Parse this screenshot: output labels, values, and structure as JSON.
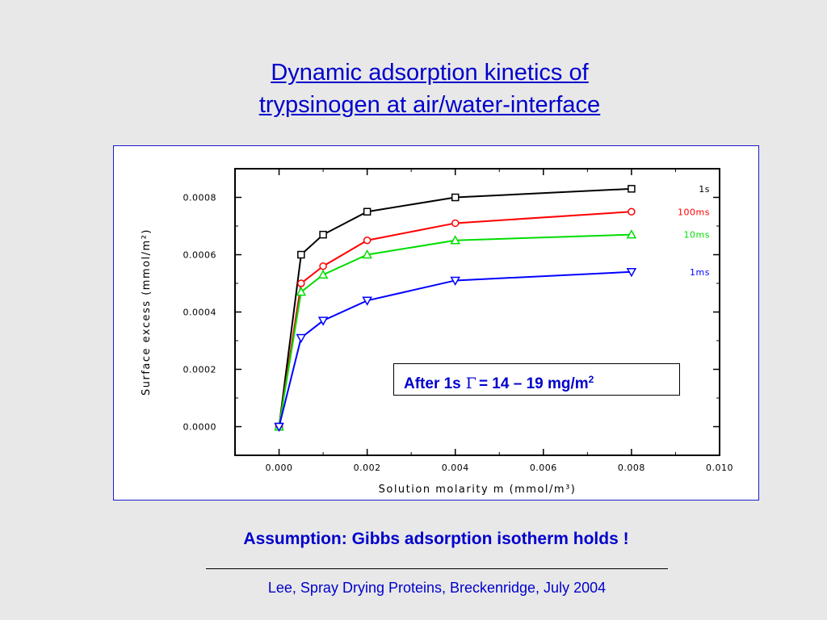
{
  "slide": {
    "title_line1": "Dynamic adsorption kinetics of",
    "title_line2": "trypsinogen at air/water-interface",
    "callout_prefix": "After 1s",
    "callout_symbol": "Γ",
    "callout_value": "= 14 – 19 mg/m",
    "callout_exp": "2",
    "assumption": "Assumption: Gibbs adsorption isotherm holds !",
    "footer": "Lee, Spray Drying Proteins, Breckenridge, July 2004"
  },
  "chart_data": {
    "type": "line",
    "xlabel": "Solution molarity m (mmol/m³)",
    "ylabel": "Surface excess (mmol/m²)",
    "xlim": [
      -0.001,
      0.01
    ],
    "ylim": [
      -0.0001,
      0.0009
    ],
    "xticks": [
      0.0,
      0.002,
      0.004,
      0.006,
      0.008,
      0.01
    ],
    "xtick_labels": [
      "0.000",
      "0.002",
      "0.004",
      "0.006",
      "0.008",
      "0.010"
    ],
    "yticks": [
      0.0,
      0.0002,
      0.0004,
      0.0006,
      0.0008
    ],
    "ytick_labels": [
      "0.0000",
      "0.0002",
      "0.0004",
      "0.0006",
      "0.0008"
    ],
    "grid": false,
    "x": [
      0.0,
      0.0005,
      0.001,
      0.002,
      0.004,
      0.008
    ],
    "series": [
      {
        "name": "1s",
        "color": "#000000",
        "marker": "square",
        "label_color": "#000000",
        "values": [
          0.0,
          0.0006,
          0.00067,
          0.00075,
          0.0008,
          0.00083
        ]
      },
      {
        "name": "100ms",
        "color": "#ff0000",
        "marker": "circle",
        "label_color": "#ff0000",
        "values": [
          0.0,
          0.0005,
          0.00056,
          0.00065,
          0.00071,
          0.00075
        ]
      },
      {
        "name": "10ms",
        "color": "#00dd00",
        "marker": "triangle-up",
        "label_color": "#00dd00",
        "values": [
          0.0,
          0.00047,
          0.00053,
          0.0006,
          0.00065,
          0.00067
        ]
      },
      {
        "name": "1ms",
        "color": "#0000ff",
        "marker": "triangle-down",
        "label_color": "#0000ff",
        "values": [
          0.0,
          0.00031,
          0.00037,
          0.00044,
          0.00051,
          0.00054
        ]
      }
    ]
  }
}
